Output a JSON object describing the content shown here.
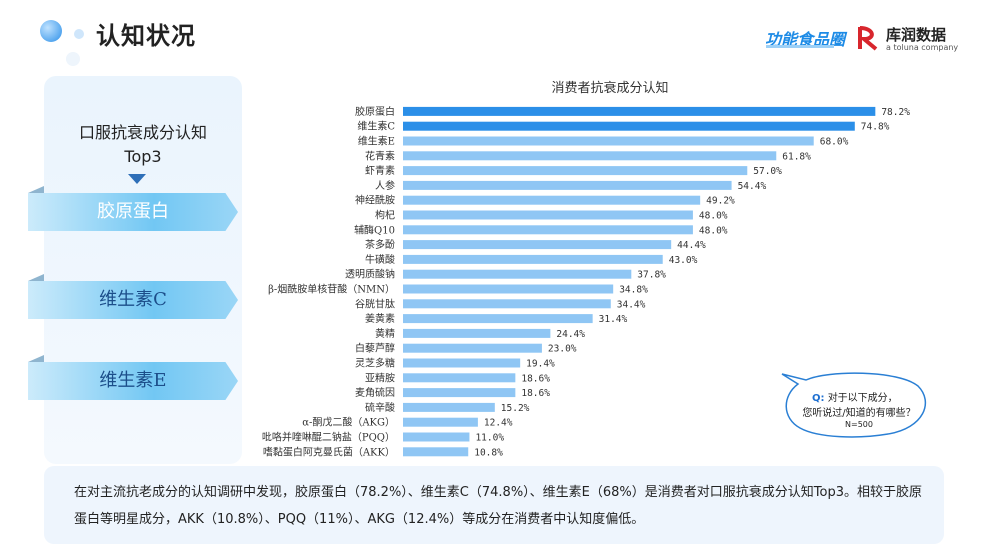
{
  "header": {
    "title": "认知状况",
    "logo_primary": "功能食品圈",
    "logo_secondary_name": "库润数据",
    "logo_secondary_sub": "a toluna company"
  },
  "left_panel": {
    "title_line1": "口服抗衰成分认知",
    "title_line2": "Top3",
    "ranks": [
      "胶原蛋白",
      "维生素C",
      "维生素E"
    ]
  },
  "chart_data": {
    "type": "bar",
    "orientation": "horizontal",
    "title": "消费者抗衰成分认知",
    "categories": [
      "胶原蛋白",
      "维生素C",
      "维生素E",
      "花青素",
      "虾青素",
      "人参",
      "神经酰胺",
      "枸杞",
      "辅酶Q10",
      "茶多酚",
      "牛磺酸",
      "透明质酸钠",
      "β-烟酰胺单核苷酸（NMN）",
      "谷胱甘肽",
      "姜黄素",
      "黄精",
      "白藜芦醇",
      "灵芝多糖",
      "亚精胺",
      "麦角硫因",
      "硫辛酸",
      "α-酮戊二酸（AKG）",
      "吡咯并喹啉醌二钠盐（PQQ）",
      "嗜黏蛋白阿克曼氏菌（AKK）"
    ],
    "values": [
      78.2,
      74.8,
      68.0,
      61.8,
      57.0,
      54.4,
      49.2,
      48.0,
      48.0,
      44.4,
      43.0,
      37.8,
      34.8,
      34.4,
      31.4,
      24.4,
      23.0,
      19.4,
      18.6,
      18.6,
      15.2,
      12.4,
      11.0,
      10.8
    ],
    "value_labels": [
      "78.2%",
      "74.8%",
      "68.0%",
      "61.8%",
      "57.0%",
      "54.4%",
      "49.2%",
      "48.0%",
      "48.0%",
      "44.4%",
      "43.0%",
      "37.8%",
      "34.8%",
      "34.4%",
      "31.4%",
      "24.4%",
      "23.0%",
      "19.4%",
      "18.6%",
      "18.6%",
      "15.2%",
      "12.4%",
      "11.0%",
      "10.8%"
    ],
    "highlight_count": 2,
    "highlight_color": "#2b8fe8",
    "bar_color": "#8fc6f4",
    "xlim": [
      0,
      100
    ],
    "grid": false,
    "legend": "none"
  },
  "callout": {
    "q": "Q:",
    "line1": "对于以下成分，",
    "line2": "您听说过/知道的有哪些？",
    "line3": "N=500"
  },
  "summary": "在对主流抗老成分的认知调研中发现，胶原蛋白（78.2%）、维生素C（74.8%）、维生素E（68%）是消费者对口服抗衰成分认知Top3。相较于胶原蛋白等明星成分，AKK（10.8%）、PQQ（11%）、AKG（12.4%）等成分在消费者中认知度偏低。"
}
